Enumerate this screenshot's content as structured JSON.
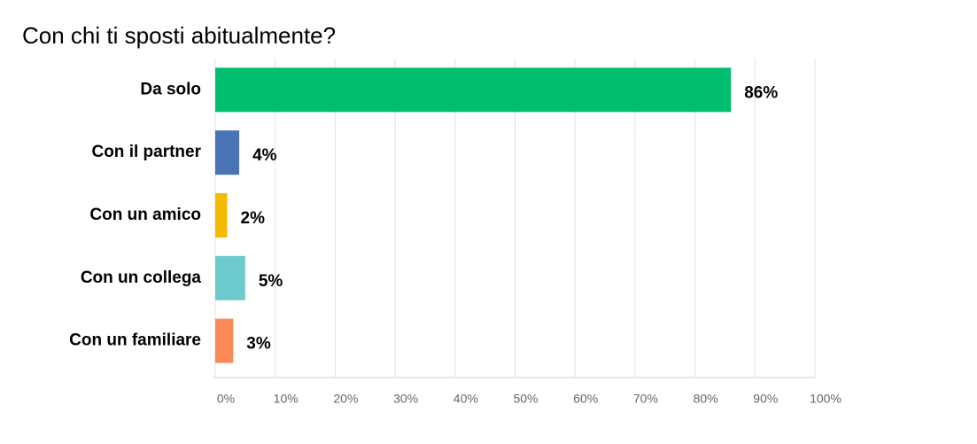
{
  "chart_data": {
    "type": "barh",
    "title": "Con chi ti sposti abitualmente?",
    "categories": [
      "Da solo",
      "Con il partner",
      "Con un amico",
      "Con un collega",
      "Con un familiare"
    ],
    "values": [
      86,
      4,
      2,
      5,
      3
    ],
    "value_labels": [
      "86%",
      "4%",
      "2%",
      "5%",
      "3%"
    ],
    "colors": [
      "#00be6e",
      "#4a74b6",
      "#f5bb00",
      "#6ccacd",
      "#fb8a59"
    ],
    "xlim": [
      0,
      100
    ],
    "xticks": [
      {
        "value": 0,
        "label": "0%"
      },
      {
        "value": 10,
        "label": "10%"
      },
      {
        "value": 20,
        "label": "20%"
      },
      {
        "value": 30,
        "label": "30%"
      },
      {
        "value": 40,
        "label": "40%"
      },
      {
        "value": 50,
        "label": "50%"
      },
      {
        "value": 60,
        "label": "60%"
      },
      {
        "value": 70,
        "label": "70%"
      },
      {
        "value": 80,
        "label": "80%"
      },
      {
        "value": 90,
        "label": "90%"
      },
      {
        "value": 100,
        "label": "100%"
      }
    ],
    "grid": true
  }
}
